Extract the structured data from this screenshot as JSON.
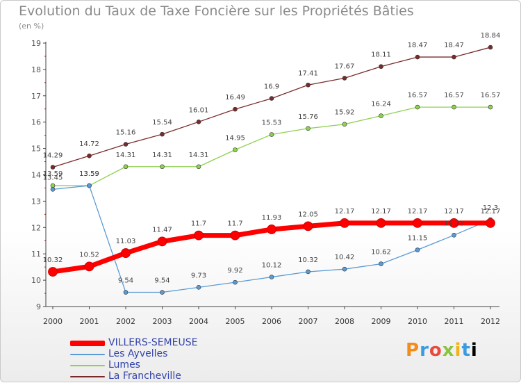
{
  "header": {
    "title": "Evolution du Taux de Taxe Foncière sur les Propriétés Bâties",
    "subtitle": "(en %)"
  },
  "logo": {
    "text": "Proxiti"
  },
  "chart_data": {
    "type": "line",
    "title": "Evolution du Taux de Taxe Foncière sur les Propriétés Bâties",
    "subtitle": "(en %)",
    "xlabel": "",
    "ylabel": "",
    "x": [
      "2000",
      "2001",
      "2002",
      "2003",
      "2004",
      "2005",
      "2006",
      "2007",
      "2008",
      "2009",
      "2010",
      "2011",
      "2012"
    ],
    "ylim": [
      9,
      19
    ],
    "yticks": [
      "9",
      "10",
      "11",
      "12",
      "13",
      "14",
      "15",
      "16",
      "17",
      "18",
      "19"
    ],
    "grid": false,
    "legend_position": "bottom-left",
    "series": [
      {
        "name": "VILLERS-SEMEUSE",
        "color": "#ff0000",
        "values": [
          10.32,
          10.52,
          11.03,
          11.47,
          11.7,
          11.7,
          11.93,
          12.05,
          12.17,
          12.17,
          12.17,
          12.17,
          12.17
        ],
        "labels": [
          "10.32",
          "10.52",
          "11.03",
          "11.47",
          "11.7",
          "11.7",
          "11.93",
          "12.05",
          "12.17",
          "12.17",
          "12.17",
          "12.17",
          "12.17"
        ]
      },
      {
        "name": "Les Ayvelles",
        "color": "#5b9bd5",
        "values": [
          13.45,
          13.59,
          9.54,
          9.54,
          9.73,
          9.92,
          10.12,
          10.32,
          10.42,
          10.62,
          11.15,
          11.71,
          12.3
        ],
        "labels": [
          "13.45",
          "13.59",
          "9.54",
          "9.54",
          "9.73",
          "9.92",
          "10.12",
          "10.32",
          "10.42",
          "10.62",
          "11.15",
          "11.71",
          "12.3"
        ]
      },
      {
        "name": "Lumes",
        "color": "#8fd14f",
        "values": [
          13.59,
          13.59,
          14.31,
          14.31,
          14.31,
          14.95,
          15.53,
          15.76,
          15.92,
          16.24,
          16.57,
          16.57,
          16.57
        ],
        "labels": [
          "13.59",
          "13.59",
          "14.31",
          "14.31",
          "14.31",
          "14.95",
          "15.53",
          "15.76",
          "15.92",
          "16.24",
          "16.57",
          "16.57",
          "16.57"
        ]
      },
      {
        "name": "La Francheville",
        "color": "#7a2a2a",
        "values": [
          14.29,
          14.72,
          15.16,
          15.54,
          16.01,
          16.49,
          16.9,
          17.41,
          17.67,
          18.11,
          18.47,
          18.47,
          18.84
        ],
        "labels": [
          "14.29",
          "14.72",
          "15.16",
          "15.54",
          "16.01",
          "16.49",
          "16.9",
          "17.41",
          "17.67",
          "18.11",
          "18.47",
          "18.47",
          "18.84"
        ]
      }
    ]
  }
}
